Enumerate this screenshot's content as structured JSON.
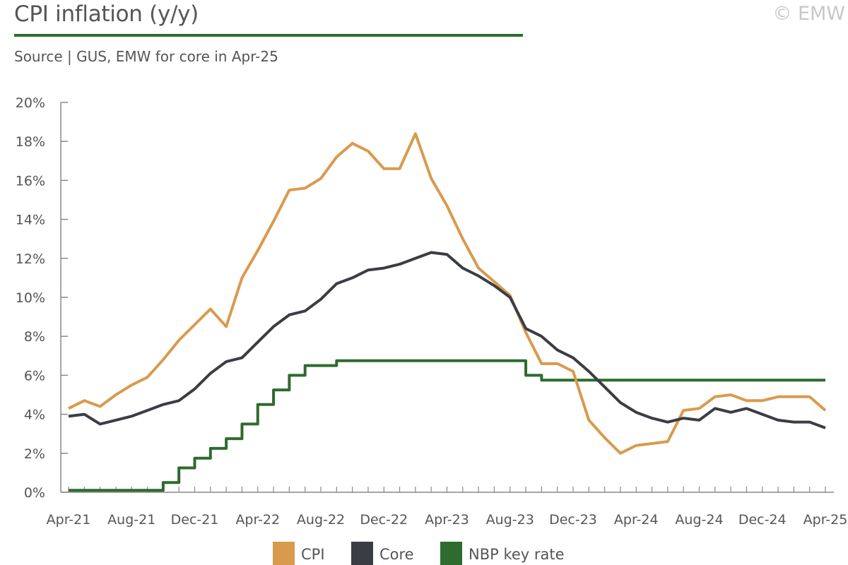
{
  "header": {
    "title": "CPI inflation (y/y)",
    "subtitle": "Source | GUS, EMW for core in Apr-25",
    "copyright": "© EMW"
  },
  "colors": {
    "cpi": "#d99a4e",
    "core": "#3b3d45",
    "nbp": "#2e6b2e",
    "axis": "#888888"
  },
  "chart_data": {
    "type": "line",
    "title": "CPI inflation (y/y)",
    "x": [
      "Apr-21",
      "May-21",
      "Jun-21",
      "Jul-21",
      "Aug-21",
      "Sep-21",
      "Oct-21",
      "Nov-21",
      "Dec-21",
      "Jan-22",
      "Feb-22",
      "Mar-22",
      "Apr-22",
      "May-22",
      "Jun-22",
      "Jul-22",
      "Aug-22",
      "Sep-22",
      "Oct-22",
      "Nov-22",
      "Dec-22",
      "Jan-23",
      "Feb-23",
      "Mar-23",
      "Apr-23",
      "May-23",
      "Jun-23",
      "Jul-23",
      "Aug-23",
      "Sep-23",
      "Oct-23",
      "Nov-23",
      "Dec-23",
      "Jan-24",
      "Feb-24",
      "Mar-24",
      "Apr-24",
      "May-24",
      "Jun-24",
      "Jul-24",
      "Aug-24",
      "Sep-24",
      "Oct-24",
      "Nov-24",
      "Dec-24",
      "Jan-25",
      "Feb-25",
      "Mar-25",
      "Apr-25"
    ],
    "x_tick_labels": [
      "Apr-21",
      "Aug-21",
      "Dec-21",
      "Apr-22",
      "Aug-22",
      "Dec-22",
      "Apr-23",
      "Aug-23",
      "Dec-23",
      "Apr-24",
      "Aug-24",
      "Dec-24",
      "Apr-25"
    ],
    "y_tick_labels": [
      "0%",
      "2%",
      "4%",
      "6%",
      "8%",
      "10%",
      "12%",
      "14%",
      "16%",
      "18%",
      "20%"
    ],
    "ylim": [
      0,
      20
    ],
    "grid": false,
    "legend": "bottom",
    "series": [
      {
        "name": "CPI",
        "step": false,
        "values": [
          4.3,
          4.7,
          4.4,
          5.0,
          5.5,
          5.9,
          6.8,
          7.8,
          8.6,
          9.4,
          8.5,
          11.0,
          12.4,
          13.9,
          15.5,
          15.6,
          16.1,
          17.2,
          17.9,
          17.5,
          16.6,
          16.6,
          18.4,
          16.1,
          14.7,
          13.0,
          11.5,
          10.8,
          10.1,
          8.2,
          6.6,
          6.6,
          6.2,
          3.7,
          2.8,
          2.0,
          2.4,
          2.5,
          2.6,
          4.2,
          4.3,
          4.9,
          5.0,
          4.7,
          4.7,
          4.9,
          4.9,
          4.9,
          4.2
        ]
      },
      {
        "name": "Core",
        "step": false,
        "values": [
          3.9,
          4.0,
          3.5,
          3.7,
          3.9,
          4.2,
          4.5,
          4.7,
          5.3,
          6.1,
          6.7,
          6.9,
          7.7,
          8.5,
          9.1,
          9.3,
          9.9,
          10.7,
          11.0,
          11.4,
          11.5,
          11.7,
          12.0,
          12.3,
          12.2,
          11.5,
          11.1,
          10.6,
          10.0,
          8.4,
          8.0,
          7.3,
          6.9,
          6.2,
          5.4,
          4.6,
          4.1,
          3.8,
          3.6,
          3.8,
          3.7,
          4.3,
          4.1,
          4.3,
          4.0,
          3.7,
          3.6,
          3.6,
          3.3
        ]
      },
      {
        "name": "NBP key rate",
        "step": true,
        "values": [
          0.1,
          0.1,
          0.1,
          0.1,
          0.1,
          0.1,
          0.5,
          1.25,
          1.75,
          2.25,
          2.75,
          3.5,
          4.5,
          5.25,
          6.0,
          6.5,
          6.5,
          6.75,
          6.75,
          6.75,
          6.75,
          6.75,
          6.75,
          6.75,
          6.75,
          6.75,
          6.75,
          6.75,
          6.75,
          6.0,
          5.75,
          5.75,
          5.75,
          5.75,
          5.75,
          5.75,
          5.75,
          5.75,
          5.75,
          5.75,
          5.75,
          5.75,
          5.75,
          5.75,
          5.75,
          5.75,
          5.75,
          5.75,
          5.75
        ]
      }
    ]
  }
}
